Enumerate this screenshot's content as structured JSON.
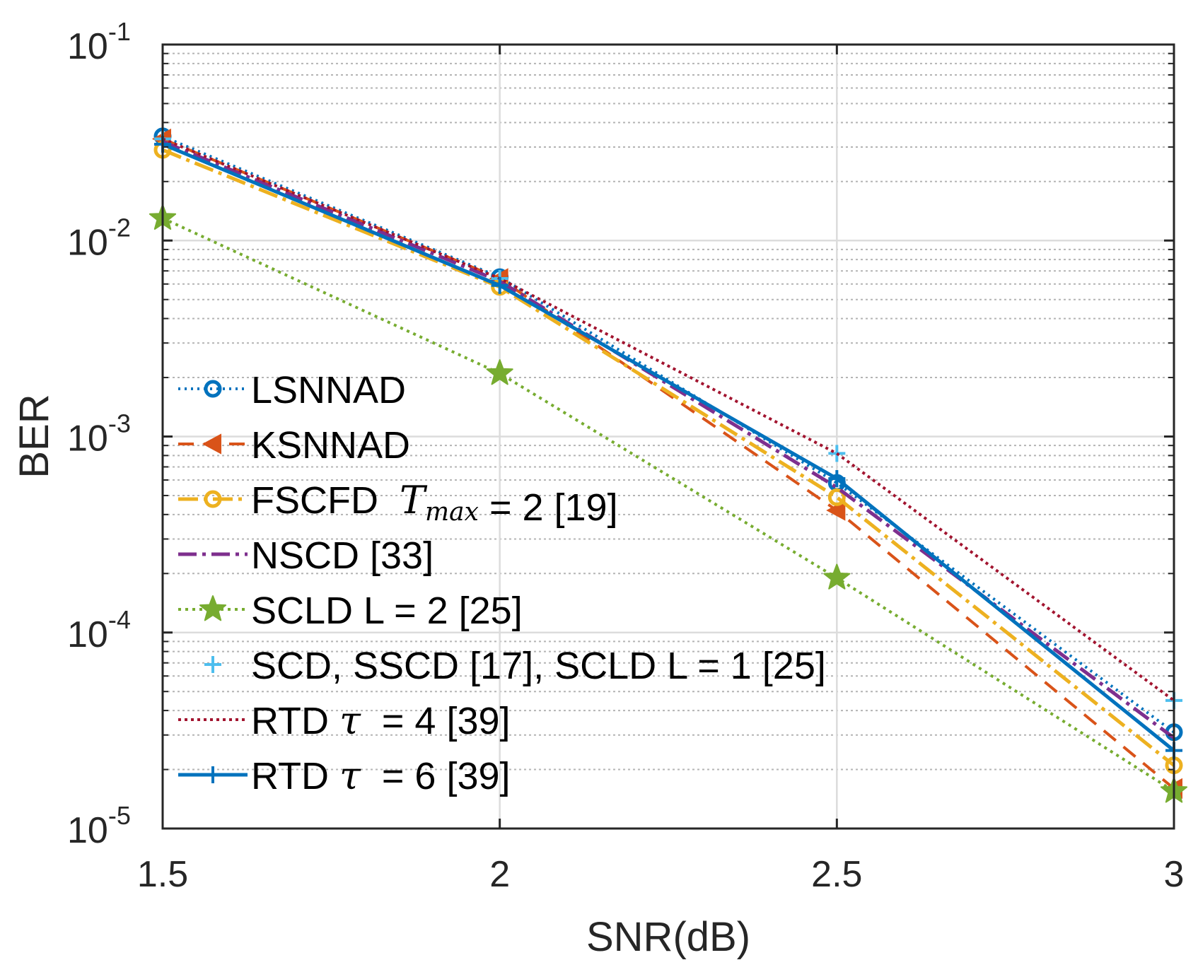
{
  "chart_data": {
    "type": "line",
    "xlabel": "SNR(dB)",
    "ylabel": "BER",
    "xlim": [
      1.5,
      3
    ],
    "ylim": [
      1e-05,
      0.1
    ],
    "yscale": "log",
    "grid": true,
    "legend_position": "bottom-left",
    "x_ticks": [
      {
        "value": 1.5,
        "label": "1.5"
      },
      {
        "value": 2,
        "label": "2"
      },
      {
        "value": 2.5,
        "label": "2.5"
      },
      {
        "value": 3,
        "label": "3"
      }
    ],
    "y_ticks": [
      {
        "value": 0.1,
        "base": "10",
        "exp": "-1"
      },
      {
        "value": 0.01,
        "base": "10",
        "exp": "-2"
      },
      {
        "value": 0.001,
        "base": "10",
        "exp": "-3"
      },
      {
        "value": 0.0001,
        "base": "10",
        "exp": "-4"
      },
      {
        "value": 1e-05,
        "base": "10",
        "exp": "-5"
      }
    ],
    "series": [
      {
        "name": "LSNNAD",
        "legend": [
          {
            "t": "LSNNAD"
          }
        ],
        "color": "#0072BD",
        "dash": "3,6",
        "width": 4,
        "marker": "circle",
        "x": [
          1.5,
          2,
          2.5,
          3
        ],
        "y": [
          0.034,
          0.0065,
          0.00058,
          3.1e-05
        ]
      },
      {
        "name": "KSNNAD",
        "legend": [
          {
            "t": "KSNNAD"
          }
        ],
        "color": "#D95319",
        "dash": "22,14",
        "width": 4,
        "marker": "triangle-left",
        "x": [
          1.5,
          2,
          2.5,
          3
        ],
        "y": [
          0.033,
          0.0064,
          0.00042,
          1.6e-05
        ]
      },
      {
        "name": "FSCFD Tmax = 2 [19]",
        "legend": [
          {
            "t": "FSCFD  "
          },
          {
            "t": "T",
            "i": true
          },
          {
            "t": "max",
            "i": true,
            "sub": true
          },
          {
            "t": " = 2 [19]"
          }
        ],
        "color": "#EDB120",
        "dash": "28,8,5,8",
        "width": 5,
        "marker": "circle",
        "x": [
          1.5,
          2,
          2.5,
          3
        ],
        "y": [
          0.029,
          0.0058,
          0.00049,
          2.1e-05
        ]
      },
      {
        "name": "NSCD [33]",
        "legend": [
          {
            "t": "NSCD [33]"
          }
        ],
        "color": "#7E2F8E",
        "dash": "26,8,5,8",
        "width": 5,
        "marker": "none",
        "x": [
          1.5,
          2,
          2.5,
          3
        ],
        "y": [
          0.032,
          0.0062,
          0.00055,
          2.9e-05
        ]
      },
      {
        "name": "SCLD L = 2 [25]",
        "legend": [
          {
            "t": "SCLD L = 2 [25]"
          }
        ],
        "color": "#77AC30",
        "dash": "4,6",
        "width": 4,
        "marker": "star",
        "x": [
          1.5,
          2,
          2.5,
          3
        ],
        "y": [
          0.013,
          0.0021,
          0.00019,
          1.55e-05
        ]
      },
      {
        "name": "SCD, SSCD [17], SCLD L = 1 [25]",
        "legend": [
          {
            "t": "SCD, SSCD [17], SCLD L = 1 [25]"
          }
        ],
        "color": "#4DBEEE",
        "dash": "",
        "width": 0,
        "marker": "plus",
        "x": [
          1.5,
          2,
          2.5,
          3
        ],
        "y": [
          0.033,
          0.0064,
          0.00082,
          4.5e-05
        ]
      },
      {
        "name": "RTD τ = 4 [39]",
        "legend": [
          {
            "t": "RTD "
          },
          {
            "t": "τ",
            "i": true
          },
          {
            "t": "  = 4 [39]"
          }
        ],
        "color": "#A2142F",
        "dash": "4,5",
        "width": 4,
        "marker": "none",
        "x": [
          1.5,
          2,
          2.5,
          3
        ],
        "y": [
          0.033,
          0.0064,
          0.00082,
          4.5e-05
        ]
      },
      {
        "name": "RTD τ = 6 [39]",
        "legend": [
          {
            "t": "RTD "
          },
          {
            "t": "τ",
            "i": true
          },
          {
            "t": "  = 6 [39]"
          }
        ],
        "color": "#0072BD",
        "dash": "",
        "width": 5,
        "marker": "plus",
        "x": [
          1.5,
          2,
          2.5,
          3
        ],
        "y": [
          0.031,
          0.0059,
          0.00061,
          2.5e-05
        ]
      }
    ]
  }
}
